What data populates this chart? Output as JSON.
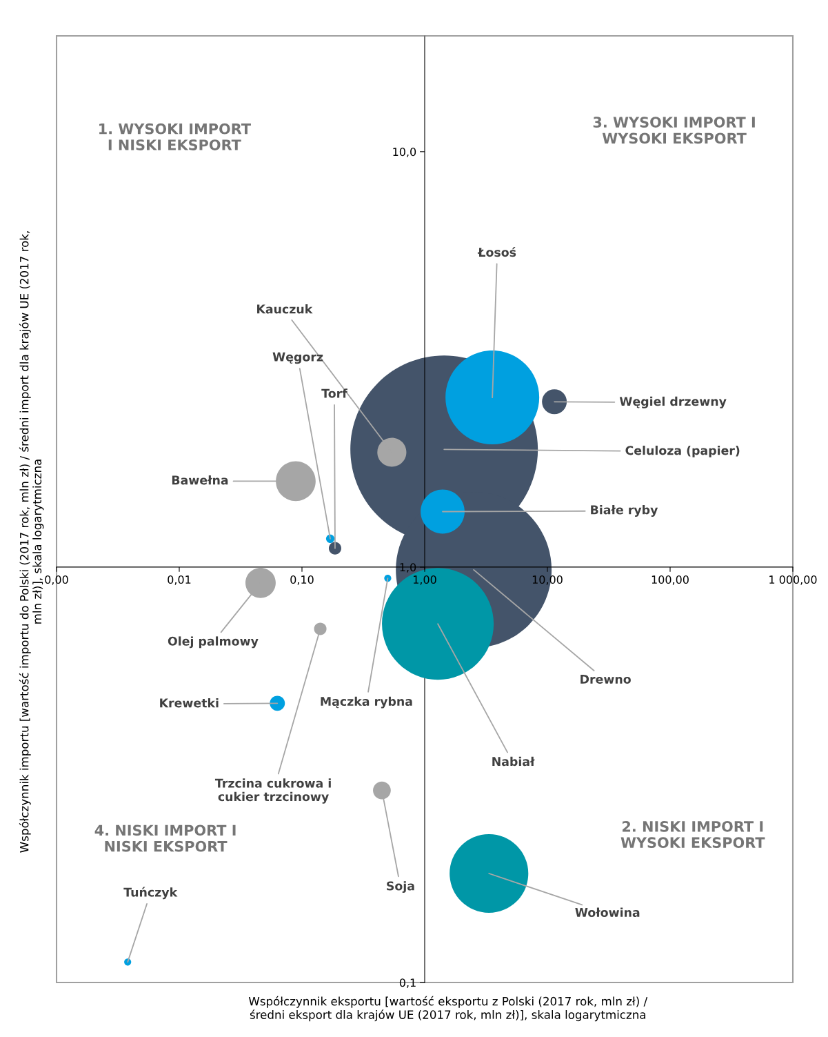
{
  "chart_data": {
    "type": "bubble",
    "xlabel": "Współczynnik eksportu [wartość eksportu z Polski (2017 rok, mln zł) /\nśredni eksport dla krajów UE (2017 rok, mln zł)], skala logarytmiczna",
    "ylabel": "Współczynnik importu [wartość importu do Polski (2017 rok, mln zł) / średni import dla krajów UE (2017 rok,\nmln zł)], skala logarytmiczna",
    "x": [
      3.56,
      1.44,
      11.4,
      0.54,
      1.4,
      0.089,
      0.17,
      0.186,
      2.51,
      0.046,
      0.5,
      1.28,
      0.141,
      0.063,
      0.448,
      3.34,
      0.0038
    ],
    "values": [
      2.56,
      1.92,
      2.5,
      1.89,
      1.36,
      1.61,
      1.17,
      1.11,
      0.985,
      0.916,
      0.94,
      0.73,
      0.71,
      0.47,
      0.29,
      0.183,
      0.112
    ],
    "sizes": [
      0.25,
      1,
      0.0175,
      0.024,
      0.055,
      0.045,
      0.002,
      0.0044,
      0.69,
      0.026,
      0.0014,
      0.355,
      0.0044,
      0.0065,
      0.009,
      0.176,
      0.0014
    ],
    "colors": [
      "#00a0e0",
      "#44546a",
      "#44546a",
      "#a6a6a6",
      "#00a0e0",
      "#a6a6a6",
      "#00a0e0",
      "#44546a",
      "#44546a",
      "#a6a6a6",
      "#00a0e0",
      "#0097a7",
      "#a6a6a6",
      "#00a0e0",
      "#a6a6a6",
      "#0097a7",
      "#00a0e0"
    ],
    "annotations": [
      {
        "text": "Łosoś",
        "x": 3.56,
        "y": 2.56
      },
      {
        "text": "Celuloza (papier)",
        "x": 1.44,
        "y": 1.92
      },
      {
        "text": "Węgiel drzewny",
        "x": 11.4,
        "y": 2.5
      },
      {
        "text": "Kauczuk",
        "x": 0.54,
        "y": 1.89
      },
      {
        "text": "Białe ryby",
        "x": 1.4,
        "y": 1.36
      },
      {
        "text": "Bawełna",
        "x": 0.089,
        "y": 1.61
      },
      {
        "text": "Węgorz",
        "x": 0.17,
        "y": 1.17
      },
      {
        "text": "Torf",
        "x": 0.186,
        "y": 1.11
      },
      {
        "text": "Drewno",
        "x": 2.51,
        "y": 0.985
      },
      {
        "text": "Olej palmowy",
        "x": 0.046,
        "y": 0.916
      },
      {
        "text": "Mączka rybna",
        "x": 0.5,
        "y": 0.94
      },
      {
        "text": "Nabiał",
        "x": 1.28,
        "y": 0.73
      },
      {
        "text": "Trzcina cukrowa i\ncukier trzcinowy",
        "x": 0.141,
        "y": 0.71
      },
      {
        "text": "Krewetki",
        "x": 0.063,
        "y": 0.47
      },
      {
        "text": "Soja",
        "x": 0.448,
        "y": 0.29
      },
      {
        "text": "Wołowina",
        "x": 3.34,
        "y": 0.183
      },
      {
        "text": "Tuńczyk",
        "x": 0.0038,
        "y": 0.112
      },
      "1. WYSOKI IMPORT\nI NISKI EKSPORT",
      "3. WYSOKI IMPORT I\nWYSOKI EKSPORT",
      "2. NISKI IMPORT I\nWYSOKI EKSPORT",
      "4. NISKI IMPORT I\nNISKI EKSPORT"
    ],
    "log": "xy",
    "grid": false,
    "legend": false,
    "xlim": [
      0.001,
      1000
    ],
    "xticks": [
      {
        "value": 0.001,
        "label": "0,00"
      },
      {
        "value": 0.01,
        "label": "0,01"
      },
      {
        "value": 0.1,
        "label": "0,10"
      },
      {
        "value": 1,
        "label": "1,00"
      },
      {
        "value": 10,
        "label": "10,00"
      },
      {
        "value": 100,
        "label": "100,00"
      },
      {
        "value": 1000,
        "label": "1 000,00"
      }
    ],
    "ylim": [
      0.1,
      19
    ],
    "yticks": [
      {
        "value": 0.1,
        "label": "0,1"
      },
      {
        "value": 1,
        "label": "1,0"
      },
      {
        "value": 10,
        "label": "10,0"
      }
    ]
  }
}
